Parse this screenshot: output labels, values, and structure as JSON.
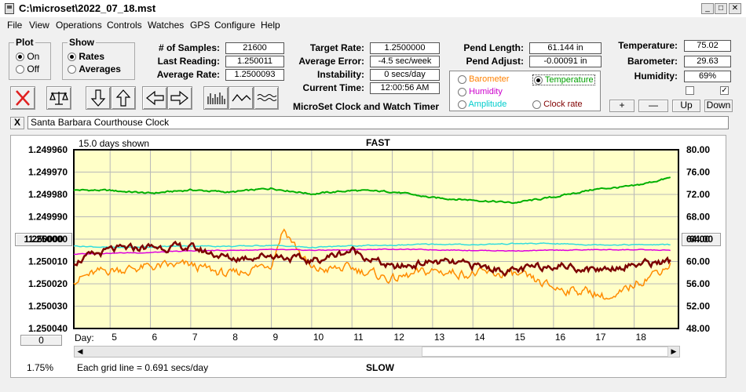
{
  "window": {
    "title": "C:\\microset\\2022_07_18.mst"
  },
  "menu": [
    "File",
    "View",
    "Operations",
    "Controls",
    "Watches",
    "GPS",
    "Configure",
    "Help"
  ],
  "plot_group": {
    "title": "Plot",
    "options": [
      {
        "label": "On",
        "selected": true
      },
      {
        "label": "Off",
        "selected": false
      }
    ]
  },
  "show_group": {
    "title": "Show",
    "options": [
      {
        "label": "Rates",
        "selected": true
      },
      {
        "label": "Averages",
        "selected": false
      }
    ]
  },
  "stats": {
    "samples_label": "# of Samples:",
    "samples": "21600",
    "last_label": "Last Reading:",
    "last": "1.250011",
    "avg_label": "Average Rate:",
    "avg": "1.2500093",
    "target_label": "Target Rate:",
    "target": "1.2500000",
    "avgerr_label": "Average Error:",
    "avgerr": "-4.5 sec/week",
    "instab_label": "Instability:",
    "instab": "0 secs/day",
    "time_label": "Current Time:",
    "time": "12:00:56 AM",
    "pendlen_label": "Pend Length:",
    "pendlen": "61.144 in",
    "pendadj_label": "Pend Adjust:",
    "pendadj": "-0.00091 in",
    "temp_label": "Temperature:",
    "temp": "75.02",
    "baro_label": "Barometer:",
    "baro": "29.63",
    "hum_label": "Humidity:",
    "hum": "69%"
  },
  "app_name": "MicroSet Clock and Watch Timer",
  "overlay": [
    {
      "label": "Barometer",
      "color": "#ff8000",
      "selected": false
    },
    {
      "label": "Temperature",
      "color": "#00a000",
      "selected": true
    },
    {
      "label": "Humidity",
      "color": "#cc00cc",
      "selected": false
    },
    {
      "label": "Amplitude",
      "color": "#00cccc",
      "selected": false
    },
    {
      "label": "Clock rate",
      "color": "#800000",
      "selected": false
    }
  ],
  "right_buttons": {
    "plus": "+",
    "minus": "—",
    "up": "Up",
    "down": "Down"
  },
  "checkboxes": [
    false,
    true
  ],
  "clock_name": "Santa Barbara Courthouse Clock",
  "close_x": "X",
  "chart": {
    "days_shown": "15.0 days shown",
    "fast": "FAST",
    "slow": "SLOW",
    "day_label": "Day:",
    "grid_note": "Each grid line = 0.691 secs/day",
    "percent": "1.75%",
    "left_button": "1.250000",
    "right_button": "64.00",
    "zero_button": "0"
  },
  "chart_data": {
    "type": "line",
    "x_label": "Day:",
    "x_ticks": [
      "5",
      "6",
      "7",
      "8",
      "9",
      "10",
      "11",
      "12",
      "13",
      "14",
      "15",
      "16",
      "17",
      "18"
    ],
    "y_left_ticks": [
      "1.249960",
      "1.249970",
      "1.249980",
      "1.249990",
      "1.250000",
      "1.250010",
      "1.250020",
      "1.250030",
      "1.250040"
    ],
    "y_right_ticks": [
      "80.00",
      "76.00",
      "72.00",
      "68.00",
      "64.00",
      "60.00",
      "56.00",
      "52.00",
      "48.00"
    ],
    "xlim": [
      4.1,
      19.1
    ],
    "y_right_range": [
      48,
      80
    ],
    "grid": true,
    "series": [
      {
        "name": "Temperature",
        "color": "#00b000",
        "x": [
          4.1,
          5,
          6,
          7,
          8,
          9,
          10,
          11,
          12,
          13,
          14,
          15,
          16,
          17,
          18,
          18.9
        ],
        "y": [
          72.8,
          72.7,
          72.2,
          72.8,
          72.4,
          73.1,
          72.1,
          72.7,
          72.5,
          71.4,
          71.0,
          70.5,
          71.5,
          72.9,
          73.5,
          75.0
        ]
      },
      {
        "name": "Barometer",
        "color": "#ff8c00",
        "x": [
          4.1,
          5,
          6,
          7,
          8,
          9,
          9.3,
          10,
          11,
          12,
          13,
          14,
          15,
          16,
          17,
          17.5,
          18,
          18.9
        ],
        "y": [
          56.8,
          58.5,
          59.0,
          59.3,
          57.5,
          59.8,
          66.0,
          58.4,
          58.8,
          56.8,
          58.3,
          57.8,
          57.7,
          55.3,
          54.5,
          53.0,
          56.0,
          59.5
        ]
      },
      {
        "name": "Humidity",
        "color": "#dd00dd",
        "x": [
          4.1,
          5,
          6,
          7,
          8,
          9,
          10,
          11,
          12,
          13,
          14,
          15,
          16,
          17,
          18,
          18.9
        ],
        "y": [
          61.3,
          61.5,
          61.6,
          61.9,
          62.0,
          62.1,
          62.0,
          62.1,
          62.2,
          62.1,
          62.0,
          61.9,
          62.0,
          62.1,
          62.1,
          62.0
        ]
      },
      {
        "name": "Amplitude",
        "color": "#33dddd",
        "x": [
          4.1,
          5,
          6,
          7,
          8,
          9,
          10,
          11,
          12,
          13,
          14,
          15,
          16,
          17,
          18,
          18.9
        ],
        "y": [
          62.8,
          62.5,
          62.6,
          62.8,
          62.7,
          62.9,
          62.5,
          62.8,
          62.9,
          63.1,
          63.0,
          63.2,
          63.2,
          63.0,
          63.0,
          63.0
        ]
      },
      {
        "name": "Clock rate",
        "color": "#7b0000",
        "x": [
          4.1,
          5,
          6,
          7,
          8,
          9,
          10,
          11,
          12,
          13,
          14,
          15,
          16,
          17,
          18,
          18.9
        ],
        "y": [
          60.0,
          62.0,
          62.6,
          62.5,
          60.5,
          61.2,
          60.0,
          62.0,
          58.8,
          60.0,
          59.3,
          58.2,
          59.5,
          58.5,
          59.5,
          60.0
        ]
      }
    ]
  }
}
